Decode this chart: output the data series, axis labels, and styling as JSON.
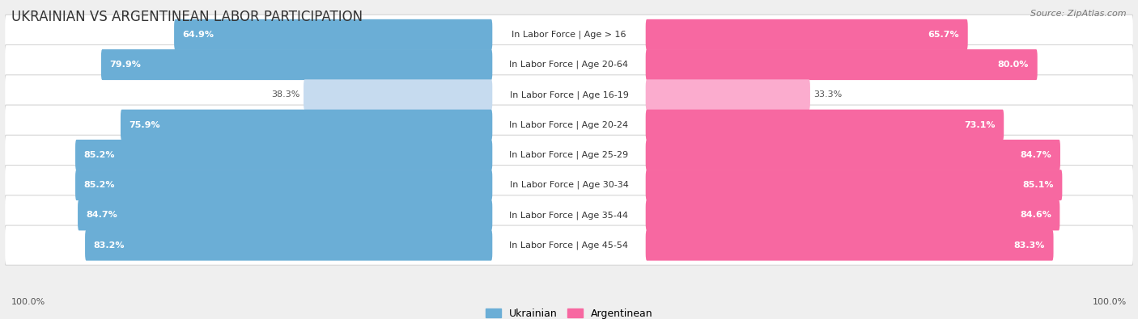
{
  "title": "UKRAINIAN VS ARGENTINEAN LABOR PARTICIPATION",
  "source": "Source: ZipAtlas.com",
  "categories": [
    "In Labor Force | Age > 16",
    "In Labor Force | Age 20-64",
    "In Labor Force | Age 16-19",
    "In Labor Force | Age 20-24",
    "In Labor Force | Age 25-29",
    "In Labor Force | Age 30-34",
    "In Labor Force | Age 35-44",
    "In Labor Force | Age 45-54"
  ],
  "ukrainian": [
    64.9,
    79.9,
    38.3,
    75.9,
    85.2,
    85.2,
    84.7,
    83.2
  ],
  "argentinean": [
    65.7,
    80.0,
    33.3,
    73.1,
    84.7,
    85.1,
    84.6,
    83.3
  ],
  "ukrainian_color": "#6BAED6",
  "argentinean_color": "#F768A1",
  "ukrainian_light_color": "#C6DBEF",
  "argentinean_light_color": "#FBACCE",
  "background_color": "#EFEFEF",
  "row_bg_color": "#FFFFFF",
  "legend_ukrainian": "Ukrainian",
  "legend_argentinean": "Argentinean",
  "title_fontsize": 12,
  "label_fontsize": 8.0,
  "value_fontsize": 8.0,
  "axis_label_fontsize": 8,
  "source_fontsize": 8
}
